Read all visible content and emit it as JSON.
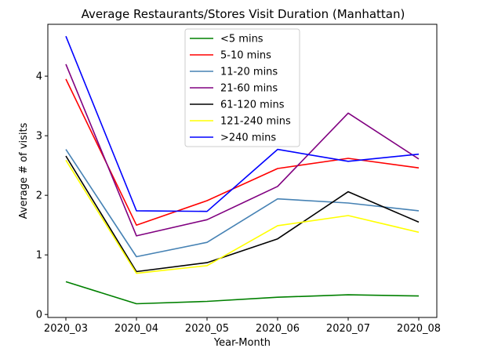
{
  "chart_data": {
    "type": "line",
    "title": "Average Restaurants/Stores Visit Duration (Manhattan)",
    "xlabel": "Year-Month",
    "ylabel": "Average # of visits",
    "categories": [
      "2020_03",
      "2020_04",
      "2020_05",
      "2020_06",
      "2020_07",
      "2020_08"
    ],
    "ylim": [
      -0.05,
      4.87
    ],
    "yticks": [
      0,
      1,
      2,
      3,
      4
    ],
    "grid": false,
    "legend_position": "top-center",
    "series": [
      {
        "name": "<5 mins",
        "color": "#008000",
        "values": [
          0.55,
          0.18,
          0.22,
          0.29,
          0.33,
          0.31
        ]
      },
      {
        "name": "5-10 mins",
        "color": "#ff0000",
        "values": [
          3.95,
          1.5,
          1.91,
          2.45,
          2.62,
          2.46
        ]
      },
      {
        "name": "11-20 mins",
        "color": "#4682b4",
        "values": [
          2.77,
          0.97,
          1.21,
          1.94,
          1.87,
          1.74
        ]
      },
      {
        "name": "21-60 mins",
        "color": "#800080",
        "values": [
          4.2,
          1.32,
          1.59,
          2.15,
          3.38,
          2.61
        ]
      },
      {
        "name": "61-120 mins",
        "color": "#000000",
        "values": [
          2.66,
          0.72,
          0.87,
          1.27,
          2.06,
          1.55
        ]
      },
      {
        "name": "121-240 mins",
        "color": "#ffff00",
        "values": [
          2.59,
          0.69,
          0.82,
          1.49,
          1.66,
          1.38
        ]
      },
      {
        "name": ">240 mins",
        "color": "#0000ff",
        "values": [
          4.67,
          1.74,
          1.73,
          2.77,
          2.57,
          2.69
        ]
      }
    ]
  }
}
